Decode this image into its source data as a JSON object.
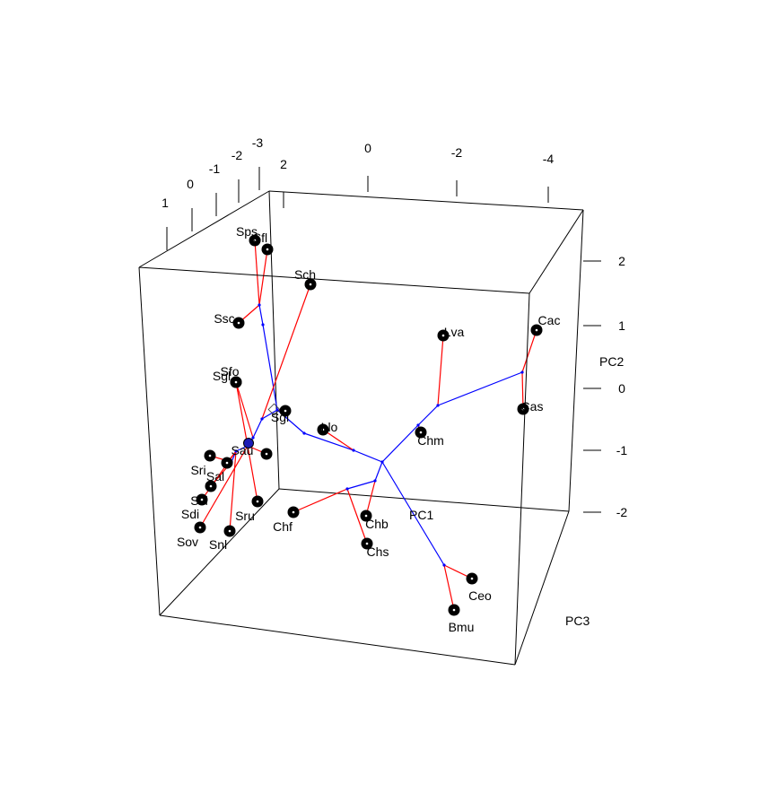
{
  "chart_data": {
    "type": "scatter",
    "subtype": "3d-phylomorphospace",
    "axes": {
      "x": {
        "label": "PC1",
        "ticks": [
          "2",
          "0",
          "-2",
          "-4"
        ]
      },
      "y": {
        "label": "PC2",
        "ticks": [
          "2",
          "1",
          "0",
          "-1",
          "-2"
        ]
      },
      "z": {
        "label": "PC3",
        "ticks": [
          "1",
          "0",
          "-1",
          "-2",
          "-3"
        ]
      }
    },
    "colors": {
      "tip_branch": "#ff0000",
      "internal_branch": "#0000ff",
      "tip_point": "#000000",
      "box": "#000000"
    },
    "taxa": [
      {
        "name": "Sps"
      },
      {
        "name": "Sfl"
      },
      {
        "name": "Sch"
      },
      {
        "name": "Ssc"
      },
      {
        "name": "Sfo"
      },
      {
        "name": "Sgl"
      },
      {
        "name": "Sgl"
      },
      {
        "name": "Sau"
      },
      {
        "name": "Sal"
      },
      {
        "name": "Sri"
      },
      {
        "name": "Ssi"
      },
      {
        "name": "Sdi"
      },
      {
        "name": "Sov"
      },
      {
        "name": "Snl"
      },
      {
        "name": "Sru"
      },
      {
        "name": "Llo"
      },
      {
        "name": "Lva"
      },
      {
        "name": "Chm"
      },
      {
        "name": "Chf"
      },
      {
        "name": "Chb"
      },
      {
        "name": "Chs"
      },
      {
        "name": "Cac"
      },
      {
        "name": "Cas"
      },
      {
        "name": "Ceo"
      },
      {
        "name": "Bmu"
      }
    ]
  }
}
